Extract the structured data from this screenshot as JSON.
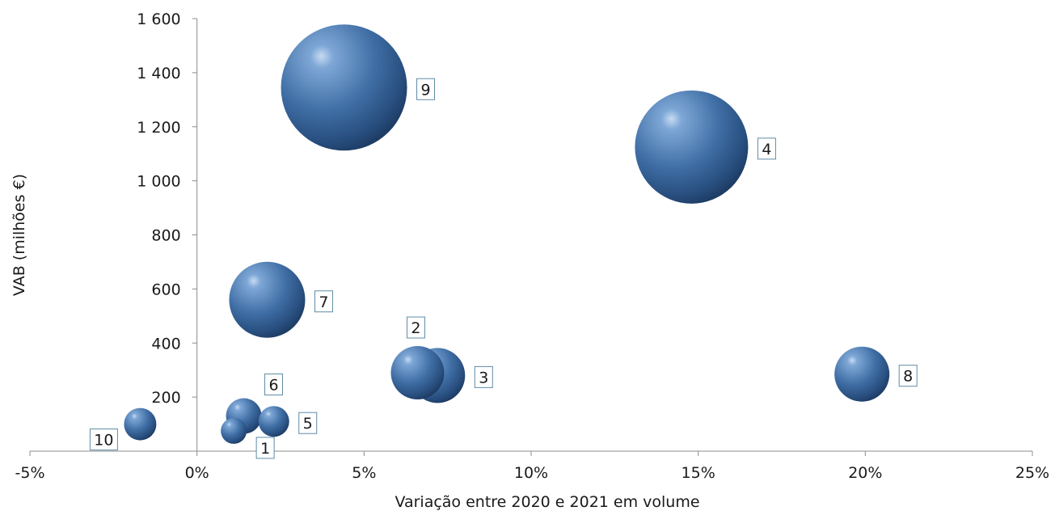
{
  "chart_data": {
    "type": "bubble",
    "xlabel": "Variação entre 2020 e 2021 em volume",
    "ylabel": "VAB (milhões €)",
    "xlim": [
      -5,
      25
    ],
    "ylim": [
      0,
      1600
    ],
    "x_ticks": [
      -5,
      0,
      5,
      10,
      15,
      20,
      25
    ],
    "x_tick_labels": [
      "-5%",
      "0%",
      "5%",
      "10%",
      "15%",
      "20%",
      "25%"
    ],
    "y_ticks": [
      200,
      400,
      600,
      800,
      1000,
      1200,
      1400,
      1600
    ],
    "y_tick_labels": [
      "200",
      "400",
      "600",
      "800",
      "1 000",
      "1 200",
      "1 400",
      "1 600"
    ],
    "grid": false,
    "bubble_color": "#3c6a9e",
    "points": [
      {
        "label": "1",
        "x": 1.1,
        "y": 75,
        "size": 16,
        "label_pos": "below"
      },
      {
        "label": "2",
        "x": 6.6,
        "y": 290,
        "size": 33,
        "label_pos": "above"
      },
      {
        "label": "3",
        "x": 7.2,
        "y": 280,
        "size": 34,
        "label_pos": "right"
      },
      {
        "label": "4",
        "x": 14.8,
        "y": 1125,
        "size": 70,
        "label_pos": "right"
      },
      {
        "label": "5",
        "x": 2.3,
        "y": 110,
        "size": 19,
        "label_pos": "right"
      },
      {
        "label": "6",
        "x": 1.4,
        "y": 130,
        "size": 22,
        "label_pos": "above-right"
      },
      {
        "label": "7",
        "x": 2.1,
        "y": 560,
        "size": 47,
        "label_pos": "right"
      },
      {
        "label": "8",
        "x": 19.9,
        "y": 285,
        "size": 34,
        "label_pos": "right"
      },
      {
        "label": "9",
        "x": 4.4,
        "y": 1345,
        "size": 78,
        "label_pos": "right"
      },
      {
        "label": "10",
        "x": -1.7,
        "y": 100,
        "size": 20,
        "label_pos": "below-left"
      }
    ]
  }
}
